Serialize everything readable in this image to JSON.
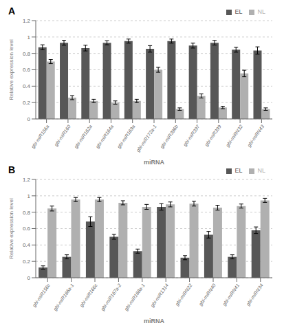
{
  "chart_data": [
    {
      "type": "bar",
      "title": "A",
      "categories": [
        "gbi-miR156a",
        "gbi-miR160",
        "gbi-miR162a",
        "gbi-miR164a",
        "gbi-miR169a",
        "gbi-miR172a-1",
        "gbi-miR396b",
        "gbi-miR397",
        "gbi-miR399",
        "gbi-miRN32",
        "gbi-miRN43"
      ],
      "series": [
        {
          "name": "EL",
          "color": "#575757",
          "values": [
            0.875,
            0.93,
            0.865,
            0.93,
            0.95,
            0.855,
            0.95,
            0.895,
            0.93,
            0.845,
            0.835
          ],
          "errors": [
            0.03,
            0.03,
            0.035,
            0.025,
            0.025,
            0.04,
            0.025,
            0.03,
            0.028,
            0.03,
            0.045
          ]
        },
        {
          "name": "NL",
          "color": "#b0b0b0",
          "values": [
            0.7,
            0.26,
            0.22,
            0.2,
            0.22,
            0.6,
            0.12,
            0.28,
            0.14,
            0.555,
            0.12
          ],
          "errors": [
            0.025,
            0.025,
            0.02,
            0.02,
            0.02,
            0.03,
            0.015,
            0.025,
            0.015,
            0.04,
            0.015
          ]
        }
      ],
      "x_label": "miRNA",
      "y_label": "Relative expression level",
      "ylim": [
        0,
        1.2
      ],
      "yticks": [
        0,
        0.2,
        0.4,
        0.6,
        0.8,
        1,
        1.2
      ],
      "grid": true,
      "legend": "upper right"
    },
    {
      "type": "bar",
      "title": "B",
      "categories": [
        "gbi-miR156c",
        "gbi-miR166a-1",
        "gbi-miR166c",
        "gbi-miR167a-2",
        "gbi-miR168a-1",
        "gbi-miR1314",
        "gbi-miRN22",
        "gbi-miRN40",
        "gbi-miRN41",
        "gbi-miRN34"
      ],
      "series": [
        {
          "name": "EL",
          "color": "#575757",
          "values": [
            0.125,
            0.255,
            0.685,
            0.5,
            0.325,
            0.865,
            0.245,
            0.525,
            0.255,
            0.58
          ],
          "errors": [
            0.02,
            0.025,
            0.06,
            0.03,
            0.025,
            0.04,
            0.025,
            0.04,
            0.025,
            0.04
          ]
        },
        {
          "name": "NL",
          "color": "#b0b0b0",
          "values": [
            0.845,
            0.955,
            0.955,
            0.915,
            0.865,
            0.895,
            0.905,
            0.855,
            0.875,
            0.945
          ],
          "errors": [
            0.03,
            0.025,
            0.025,
            0.025,
            0.03,
            0.03,
            0.03,
            0.03,
            0.025,
            0.025
          ]
        }
      ],
      "x_label": "miRNA",
      "y_label": "Relative expression level",
      "ylim": [
        0,
        1.2
      ],
      "yticks": [
        0,
        0.2,
        0.4,
        0.6,
        0.8,
        1,
        1.2
      ],
      "grid": true,
      "legend": "upper right"
    }
  ]
}
